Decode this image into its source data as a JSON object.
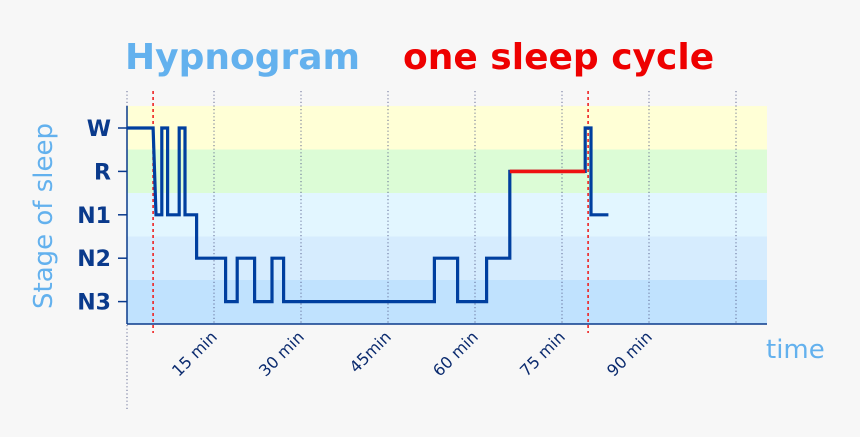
{
  "chart_data": {
    "type": "line",
    "title": "Hypnogram",
    "subtitle": "one sleep cycle",
    "ylabel": "Stage of sleep",
    "xlabel": "time",
    "stages": [
      "W",
      "R",
      "N1",
      "N2",
      "N3"
    ],
    "x_ticks": [
      {
        "value": 15,
        "label": "15 min"
      },
      {
        "value": 30,
        "label": "30 min"
      },
      {
        "value": 45,
        "label": "45min"
      },
      {
        "value": 60,
        "label": "60 min"
      },
      {
        "value": 75,
        "label": "75 min"
      },
      {
        "value": 90,
        "label": "90 min"
      }
    ],
    "xlim": [
      0,
      110
    ],
    "cycle_markers": [
      4.5,
      79.5
    ],
    "grid": true,
    "series": [
      {
        "color": "#003f9f",
        "points": [
          [
            0,
            "W"
          ],
          [
            4.5,
            "W"
          ],
          [
            5,
            "N1"
          ],
          [
            6,
            "N1"
          ],
          [
            6,
            "W"
          ],
          [
            7,
            "W"
          ],
          [
            7,
            "N1"
          ],
          [
            9,
            "N1"
          ],
          [
            9,
            "W"
          ],
          [
            10,
            "W"
          ],
          [
            10,
            "N1"
          ],
          [
            12,
            "N1"
          ],
          [
            12,
            "N2"
          ],
          [
            17,
            "N2"
          ],
          [
            17,
            "N3"
          ],
          [
            19,
            "N3"
          ],
          [
            19,
            "N2"
          ],
          [
            22,
            "N2"
          ],
          [
            22,
            "N3"
          ],
          [
            25,
            "N3"
          ],
          [
            25,
            "N2"
          ],
          [
            27,
            "N2"
          ],
          [
            27,
            "N3"
          ],
          [
            53,
            "N3"
          ],
          [
            53,
            "N2"
          ],
          [
            57,
            "N2"
          ],
          [
            57,
            "N3"
          ],
          [
            62,
            "N3"
          ],
          [
            62,
            "N2"
          ],
          [
            66,
            "N2"
          ],
          [
            66,
            "R"
          ],
          [
            79,
            "R"
          ],
          [
            79,
            "W"
          ],
          [
            80,
            "W"
          ],
          [
            80,
            "N1"
          ],
          [
            83,
            "N1"
          ]
        ]
      },
      {
        "color": "#ee1111",
        "points": [
          [
            66,
            "R"
          ],
          [
            79,
            "R"
          ]
        ]
      }
    ],
    "band_colors": [
      "#ffffd6",
      "#dcfcd6",
      "#e2f6ff",
      "#d6ecfe",
      "#c0e2fe"
    ],
    "title_colors": {
      "main": "#63b1ee",
      "subtitle": "#ee0000"
    }
  }
}
